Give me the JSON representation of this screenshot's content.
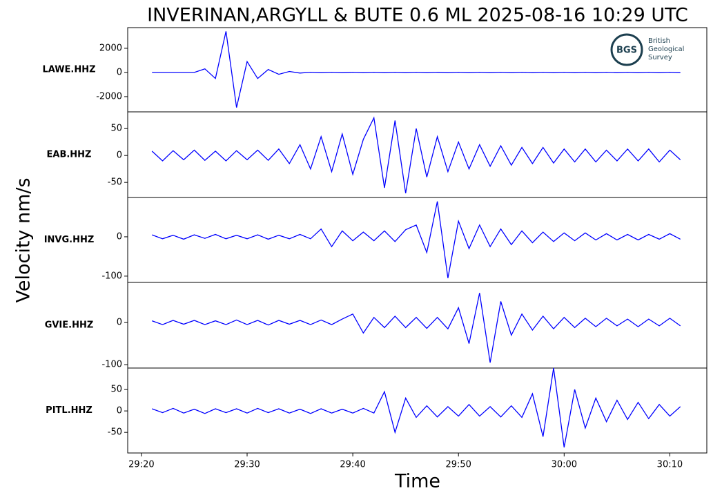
{
  "title": "INVERINAN,ARGYLL & BUTE 0.6 ML   2025-08-16 10:29 UTC",
  "ylabel": "Velocity nm/s",
  "xlabel": "Time",
  "logo": {
    "mark": "BGS",
    "lines": [
      "British",
      "Geological",
      "Survey"
    ]
  },
  "chart_data": [
    {
      "type": "line",
      "ylabel": "LAWE.HHZ",
      "color": "#0000ff",
      "x": [
        1761,
        1762,
        1763,
        1764,
        1765,
        1766,
        1767,
        1768,
        1769,
        1770,
        1771,
        1772,
        1773,
        1774,
        1775,
        1776,
        1777,
        1778,
        1779,
        1780,
        1781,
        1782,
        1783,
        1784,
        1785,
        1786,
        1787,
        1788,
        1789,
        1790,
        1791,
        1792,
        1793,
        1794,
        1795,
        1796,
        1797,
        1798,
        1799,
        1800,
        1801,
        1802,
        1803,
        1804,
        1805,
        1806,
        1807,
        1808,
        1809,
        1810,
        1811
      ],
      "values": [
        0,
        0,
        0,
        0,
        0,
        300,
        -500,
        3400,
        -2900,
        900,
        -500,
        250,
        -150,
        80,
        -50,
        20,
        -20,
        20,
        -20,
        20,
        -20,
        20,
        -20,
        20,
        -20,
        20,
        -20,
        20,
        -20,
        20,
        -20,
        20,
        -20,
        20,
        -20,
        20,
        -20,
        20,
        -20,
        20,
        -20,
        20,
        -20,
        20,
        -20,
        20,
        -20,
        20,
        -20,
        20,
        -20
      ],
      "xlim": [
        1758.7,
        1813.5
      ],
      "ylim": [
        -3260,
        3710
      ],
      "yticks": [
        -2000,
        0,
        2000
      ]
    },
    {
      "type": "line",
      "ylabel": "EAB.HHZ",
      "color": "#0000ff",
      "x": [
        1761,
        1762,
        1763,
        1764,
        1765,
        1766,
        1767,
        1768,
        1769,
        1770,
        1771,
        1772,
        1773,
        1774,
        1775,
        1776,
        1777,
        1778,
        1779,
        1780,
        1781,
        1782,
        1783,
        1784,
        1785,
        1786,
        1787,
        1788,
        1789,
        1790,
        1791,
        1792,
        1793,
        1794,
        1795,
        1796,
        1797,
        1798,
        1799,
        1800,
        1801,
        1802,
        1803,
        1804,
        1805,
        1806,
        1807,
        1808,
        1809,
        1810,
        1811
      ],
      "values": [
        8,
        -10,
        9,
        -8,
        10,
        -9,
        8,
        -10,
        9,
        -8,
        10,
        -9,
        12,
        -15,
        20,
        -25,
        35,
        -30,
        40,
        -35,
        30,
        70,
        -60,
        65,
        -70,
        50,
        -40,
        35,
        -30,
        25,
        -25,
        20,
        -20,
        18,
        -18,
        15,
        -15,
        15,
        -14,
        12,
        -12,
        12,
        -12,
        10,
        -10,
        12,
        -10,
        12,
        -12,
        10,
        -8
      ],
      "xlim": [
        1758.7,
        1813.5
      ],
      "ylim": [
        -78,
        81
      ],
      "yticks": [
        -50,
        0,
        50
      ]
    },
    {
      "type": "line",
      "ylabel": "INVG.HHZ",
      "color": "#0000ff",
      "x": [
        1761,
        1762,
        1763,
        1764,
        1765,
        1766,
        1767,
        1768,
        1769,
        1770,
        1771,
        1772,
        1773,
        1774,
        1775,
        1776,
        1777,
        1778,
        1779,
        1780,
        1781,
        1782,
        1783,
        1784,
        1785,
        1786,
        1787,
        1788,
        1789,
        1790,
        1791,
        1792,
        1793,
        1794,
        1795,
        1796,
        1797,
        1798,
        1799,
        1800,
        1801,
        1802,
        1803,
        1804,
        1805,
        1806,
        1807,
        1808,
        1809,
        1810,
        1811
      ],
      "values": [
        5,
        -5,
        4,
        -6,
        5,
        -4,
        6,
        -5,
        4,
        -5,
        5,
        -6,
        4,
        -5,
        6,
        -5,
        20,
        -25,
        15,
        -10,
        12,
        -10,
        15,
        -12,
        18,
        30,
        -40,
        90,
        -105,
        40,
        -30,
        30,
        -25,
        20,
        -20,
        15,
        -15,
        12,
        -12,
        10,
        -10,
        10,
        -8,
        8,
        -8,
        6,
        -8,
        6,
        -6,
        8,
        -6
      ],
      "xlim": [
        1758.7,
        1813.5
      ],
      "ylim": [
        -116,
        100
      ],
      "yticks": [
        -100,
        0
      ]
    },
    {
      "type": "line",
      "ylabel": "GVIE.HHZ",
      "color": "#0000ff",
      "x": [
        1761,
        1762,
        1763,
        1764,
        1765,
        1766,
        1767,
        1768,
        1769,
        1770,
        1771,
        1772,
        1773,
        1774,
        1775,
        1776,
        1777,
        1778,
        1779,
        1780,
        1781,
        1782,
        1783,
        1784,
        1785,
        1786,
        1787,
        1788,
        1789,
        1790,
        1791,
        1792,
        1793,
        1794,
        1795,
        1796,
        1797,
        1798,
        1799,
        1800,
        1801,
        1802,
        1803,
        1804,
        1805,
        1806,
        1807,
        1808,
        1809,
        1810,
        1811
      ],
      "values": [
        4,
        -5,
        5,
        -4,
        5,
        -5,
        4,
        -5,
        6,
        -5,
        5,
        -6,
        5,
        -4,
        5,
        -5,
        6,
        -5,
        8,
        20,
        -25,
        12,
        -12,
        15,
        -12,
        12,
        -14,
        12,
        -15,
        35,
        -50,
        70,
        -95,
        50,
        -30,
        20,
        -18,
        15,
        -15,
        12,
        -12,
        10,
        -10,
        10,
        -8,
        8,
        -10,
        8,
        -8,
        10,
        -8
      ],
      "xlim": [
        1758.7,
        1813.5
      ],
      "ylim": [
        -108,
        95
      ],
      "yticks": [
        -100,
        0
      ]
    },
    {
      "type": "line",
      "ylabel": "PITL.HHZ",
      "color": "#0000ff",
      "x": [
        1761,
        1762,
        1763,
        1764,
        1765,
        1766,
        1767,
        1768,
        1769,
        1770,
        1771,
        1772,
        1773,
        1774,
        1775,
        1776,
        1777,
        1778,
        1779,
        1780,
        1781,
        1782,
        1783,
        1784,
        1785,
        1786,
        1787,
        1788,
        1789,
        1790,
        1791,
        1792,
        1793,
        1794,
        1795,
        1796,
        1797,
        1798,
        1799,
        1800,
        1801,
        1802,
        1803,
        1804,
        1805,
        1806,
        1807,
        1808,
        1809,
        1810,
        1811
      ],
      "values": [
        5,
        -4,
        6,
        -5,
        4,
        -6,
        5,
        -4,
        5,
        -5,
        6,
        -4,
        5,
        -5,
        4,
        -6,
        5,
        -5,
        4,
        -5,
        6,
        -5,
        45,
        -50,
        30,
        -15,
        12,
        -14,
        10,
        -12,
        15,
        -12,
        10,
        -14,
        12,
        -15,
        40,
        -60,
        100,
        -85,
        50,
        -40,
        30,
        -25,
        25,
        -20,
        20,
        -18,
        15,
        -12,
        10
      ],
      "xlim": [
        1758.7,
        1813.5
      ],
      "ylim": [
        -98,
        100
      ],
      "yticks": [
        -50,
        0,
        50
      ],
      "xticks": [
        {
          "value": 1760,
          "label": "29:20"
        },
        {
          "value": 1770,
          "label": "29:30"
        },
        {
          "value": 1780,
          "label": "29:40"
        },
        {
          "value": 1790,
          "label": "29:50"
        },
        {
          "value": 1800,
          "label": "30:00"
        },
        {
          "value": 1810,
          "label": "30:10"
        }
      ]
    }
  ]
}
